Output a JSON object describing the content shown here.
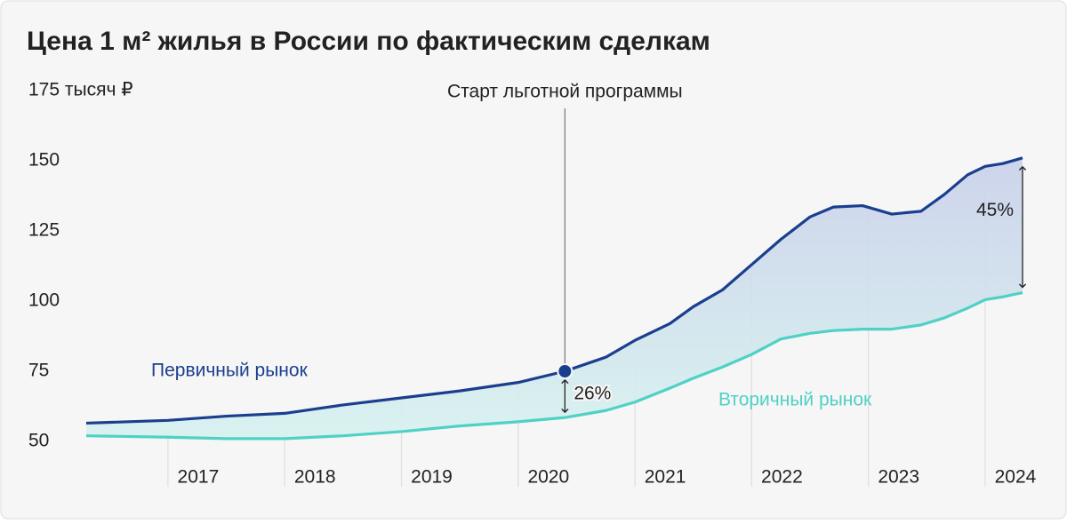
{
  "chart_data": {
    "type": "line",
    "title": "Цена 1 м² жилья в России по фактическим сделкам",
    "x": [
      2016.3,
      2017.0,
      2017.5,
      2018.0,
      2018.5,
      2019.0,
      2019.5,
      2020.0,
      2020.4,
      2020.75,
      2021.0,
      2021.3,
      2021.5,
      2021.75,
      2022.0,
      2022.25,
      2022.5,
      2022.7,
      2022.95,
      2023.2,
      2023.45,
      2023.65,
      2023.85,
      2024.0,
      2024.15,
      2024.32
    ],
    "series": [
      {
        "name": "Первичный рынок",
        "color": "#1b3f8f",
        "values": [
          56.5,
          57.5,
          59,
          60,
          63,
          65.5,
          68,
          71,
          75,
          80,
          86,
          92,
          98,
          104,
          113,
          122,
          130,
          133.5,
          134,
          131,
          132,
          138,
          145,
          148,
          149,
          151
        ]
      },
      {
        "name": "Вторичный рынок",
        "color": "#4fd1c5",
        "values": [
          52,
          51.5,
          51,
          51,
          52,
          53.5,
          55.5,
          57,
          58.5,
          61,
          64,
          69,
          72.5,
          76.5,
          81,
          86.5,
          88.5,
          89.5,
          90,
          90,
          91.5,
          94,
          97.5,
          100.5,
          101.5,
          103
        ]
      }
    ],
    "xlim": [
      2016.3,
      2024.32
    ],
    "xticks": [
      2017,
      2018,
      2019,
      2020,
      2021,
      2022,
      2023,
      2024
    ],
    "ylim": [
      50,
      175
    ],
    "yticks": [
      50,
      75,
      100,
      125,
      {
        "value": 175,
        "label": "175 тысяч ₽"
      },
      150
    ],
    "event": {
      "label": "Старт льготной программы",
      "x": 2020.4
    },
    "gaps": [
      {
        "label": "26%",
        "x": 2020.4
      },
      {
        "label": "45%",
        "x": 2024.32
      }
    ]
  }
}
